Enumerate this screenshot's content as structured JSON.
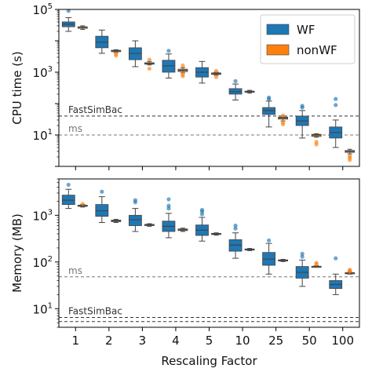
{
  "colors": {
    "wf": "#1f77b4",
    "nonwf": "#ff7f0e",
    "median": "#444444",
    "ref_dark": "#333333",
    "ref_grey": "#777777"
  },
  "chart_data": [
    {
      "type": "box",
      "panel": "top",
      "ylabel": "CPU time (s)",
      "xlabel": "",
      "yscale": "log",
      "ylim": [
        1,
        100000
      ],
      "yticks": [
        10,
        1000,
        100000
      ],
      "ytick_labels": [
        {
          "base": "10",
          "exp": "1"
        },
        {
          "base": "10",
          "exp": "3"
        },
        {
          "base": "10",
          "exp": "5"
        }
      ],
      "categories": [
        "1",
        "2",
        "3",
        "4",
        "5",
        "10",
        "25",
        "50",
        "100"
      ],
      "legend": {
        "placement": "top-right",
        "entries": [
          {
            "key": "wf",
            "label": "WF"
          },
          {
            "key": "nonwf",
            "label": "nonWF"
          }
        ]
      },
      "reference_lines": [
        {
          "label": "FastSimBac",
          "value": 40,
          "style": "dashed",
          "color_key": "ref_dark"
        },
        {
          "label": "ms",
          "value": 10,
          "style": "dashed",
          "color_key": "ref_grey"
        }
      ],
      "series": [
        {
          "key": "wf",
          "name": "WF",
          "boxes": [
            {
              "q1": 28000,
              "median": 34000,
              "q3": 40000,
              "whislo": 20000,
              "whishi": 55000,
              "fliers": [
                90000
              ]
            },
            {
              "q1": 6000,
              "median": 9000,
              "q3": 14000,
              "whislo": 4000,
              "whishi": 22000,
              "fliers": []
            },
            {
              "q1": 2500,
              "median": 4000,
              "q3": 6000,
              "whislo": 1500,
              "whishi": 10000,
              "fliers": []
            },
            {
              "q1": 1000,
              "median": 1600,
              "q3": 2400,
              "whislo": 650,
              "whishi": 3800,
              "fliers": [
                4800
              ]
            },
            {
              "q1": 700,
              "median": 1000,
              "q3": 1400,
              "whislo": 450,
              "whishi": 2200,
              "fliers": []
            },
            {
              "q1": 200,
              "median": 240,
              "q3": 300,
              "whislo": 130,
              "whishi": 420,
              "fliers": [
                520
              ]
            },
            {
              "q1": 45,
              "median": 60,
              "q3": 75,
              "whislo": 18,
              "whishi": 120,
              "fliers": [
                140,
                155
              ]
            },
            {
              "q1": 20,
              "median": 28,
              "q3": 40,
              "whislo": 8,
              "whishi": 60,
              "fliers": [
                75,
                85
              ]
            },
            {
              "q1": 8,
              "median": 12,
              "q3": 18,
              "whislo": 4,
              "whishi": 30,
              "fliers": [
                90,
                140
              ]
            }
          ]
        },
        {
          "key": "nonwf",
          "name": "nonWF",
          "boxes": [
            {
              "q1": 25000,
              "median": 27000,
              "q3": 28000,
              "whislo": 23000,
              "whishi": 30000,
              "fliers": []
            },
            {
              "q1": 4500,
              "median": 4800,
              "q3": 5000,
              "whislo": 4200,
              "whishi": 5200,
              "fliers": [
                3400,
                3800
              ]
            },
            {
              "q1": 1800,
              "median": 1900,
              "q3": 2000,
              "whislo": 1700,
              "whishi": 2200,
              "fliers": [
                1300,
                2500
              ]
            },
            {
              "q1": 1050,
              "median": 1150,
              "q3": 1250,
              "whislo": 950,
              "whishi": 1400,
              "fliers": [
                750,
                850,
                1650
              ]
            },
            {
              "q1": 850,
              "median": 900,
              "q3": 950,
              "whislo": 800,
              "whishi": 1000,
              "fliers": [
                700,
                1100
              ]
            },
            {
              "q1": 230,
              "median": 240,
              "q3": 250,
              "whislo": 215,
              "whishi": 265,
              "fliers": []
            },
            {
              "q1": 32,
              "median": 35,
              "q3": 37,
              "whislo": 28,
              "whishi": 40,
              "fliers": [
                42,
                25,
                22
              ]
            },
            {
              "q1": 9,
              "median": 10,
              "q3": 10.5,
              "whislo": 8.5,
              "whishi": 11,
              "fliers": [
                5,
                6
              ]
            },
            {
              "q1": 2.8,
              "median": 3,
              "q3": 3.2,
              "whislo": 2.5,
              "whishi": 3.5,
              "fliers": [
                1.6,
                1.9,
                2.1
              ]
            }
          ]
        }
      ]
    },
    {
      "type": "box",
      "panel": "bottom",
      "ylabel": "Memory (MB)",
      "xlabel": "Rescaling Factor",
      "yscale": "log",
      "ylim": [
        4,
        6000
      ],
      "yticks": [
        10,
        100,
        1000
      ],
      "ytick_labels": [
        {
          "base": "10",
          "exp": "1"
        },
        {
          "base": "10",
          "exp": "2"
        },
        {
          "base": "10",
          "exp": "3"
        }
      ],
      "categories": [
        "1",
        "2",
        "3",
        "4",
        "5",
        "10",
        "25",
        "50",
        "100"
      ],
      "reference_lines": [
        {
          "label": "ms",
          "value": 48,
          "style": "dashed",
          "color_key": "ref_grey"
        },
        {
          "label": "FastSimBac",
          "value": 6.5,
          "style": "dashed",
          "color_key": "ref_dark"
        },
        {
          "label": "",
          "value": 5.3,
          "style": "dashed",
          "color_key": "ref_dark"
        }
      ],
      "series": [
        {
          "key": "wf",
          "name": "WF",
          "boxes": [
            {
              "q1": 1700,
              "median": 2100,
              "q3": 2700,
              "whislo": 1400,
              "whishi": 3600,
              "fliers": [
                4500
              ]
            },
            {
              "q1": 950,
              "median": 1250,
              "q3": 1700,
              "whislo": 700,
              "whishi": 2500,
              "fliers": [
                3200
              ]
            },
            {
              "q1": 600,
              "median": 800,
              "q3": 1000,
              "whislo": 450,
              "whishi": 1400,
              "fliers": [
                1900,
                2100
              ]
            },
            {
              "q1": 450,
              "median": 580,
              "q3": 750,
              "whislo": 330,
              "whishi": 1100,
              "fliers": [
                1400,
                1600,
                2200
              ]
            },
            {
              "q1": 370,
              "median": 480,
              "q3": 620,
              "whislo": 280,
              "whishi": 900,
              "fliers": [
                1050,
                1200,
                1300
              ]
            },
            {
              "q1": 170,
              "median": 230,
              "q3": 300,
              "whislo": 120,
              "whishi": 420,
              "fliers": [
                520,
                600
              ]
            },
            {
              "q1": 85,
              "median": 115,
              "q3": 160,
              "whislo": 55,
              "whishi": 250,
              "fliers": [
                290
              ]
            },
            {
              "q1": 45,
              "median": 60,
              "q3": 80,
              "whislo": 30,
              "whishi": 110,
              "fliers": [
                130,
                150
              ]
            },
            {
              "q1": 27,
              "median": 33,
              "q3": 40,
              "whislo": 20,
              "whishi": 55,
              "fliers": [
                120
              ]
            }
          ]
        },
        {
          "key": "nonwf",
          "name": "nonWF",
          "boxes": [
            {
              "q1": 1550,
              "median": 1600,
              "q3": 1650,
              "whislo": 1500,
              "whishi": 1700,
              "fliers": [
                1750
              ]
            },
            {
              "q1": 730,
              "median": 760,
              "q3": 790,
              "whislo": 700,
              "whishi": 820,
              "fliers": []
            },
            {
              "q1": 600,
              "median": 620,
              "q3": 640,
              "whislo": 580,
              "whishi": 660,
              "fliers": []
            },
            {
              "q1": 470,
              "median": 490,
              "q3": 510,
              "whislo": 450,
              "whishi": 530,
              "fliers": []
            },
            {
              "q1": 390,
              "median": 400,
              "q3": 410,
              "whislo": 375,
              "whishi": 420,
              "fliers": []
            },
            {
              "q1": 180,
              "median": 185,
              "q3": 190,
              "whislo": 175,
              "whishi": 195,
              "fliers": []
            },
            {
              "q1": 105,
              "median": 108,
              "q3": 111,
              "whislo": 102,
              "whishi": 114,
              "fliers": []
            },
            {
              "q1": 79,
              "median": 80,
              "q3": 81,
              "whislo": 77,
              "whishi": 83,
              "fliers": [
                90,
                95
              ]
            },
            {
              "q1": 57,
              "median": 58,
              "q3": 59,
              "whislo": 55,
              "whishi": 61,
              "fliers": [
                62,
                65,
                68
              ]
            }
          ]
        }
      ]
    }
  ]
}
